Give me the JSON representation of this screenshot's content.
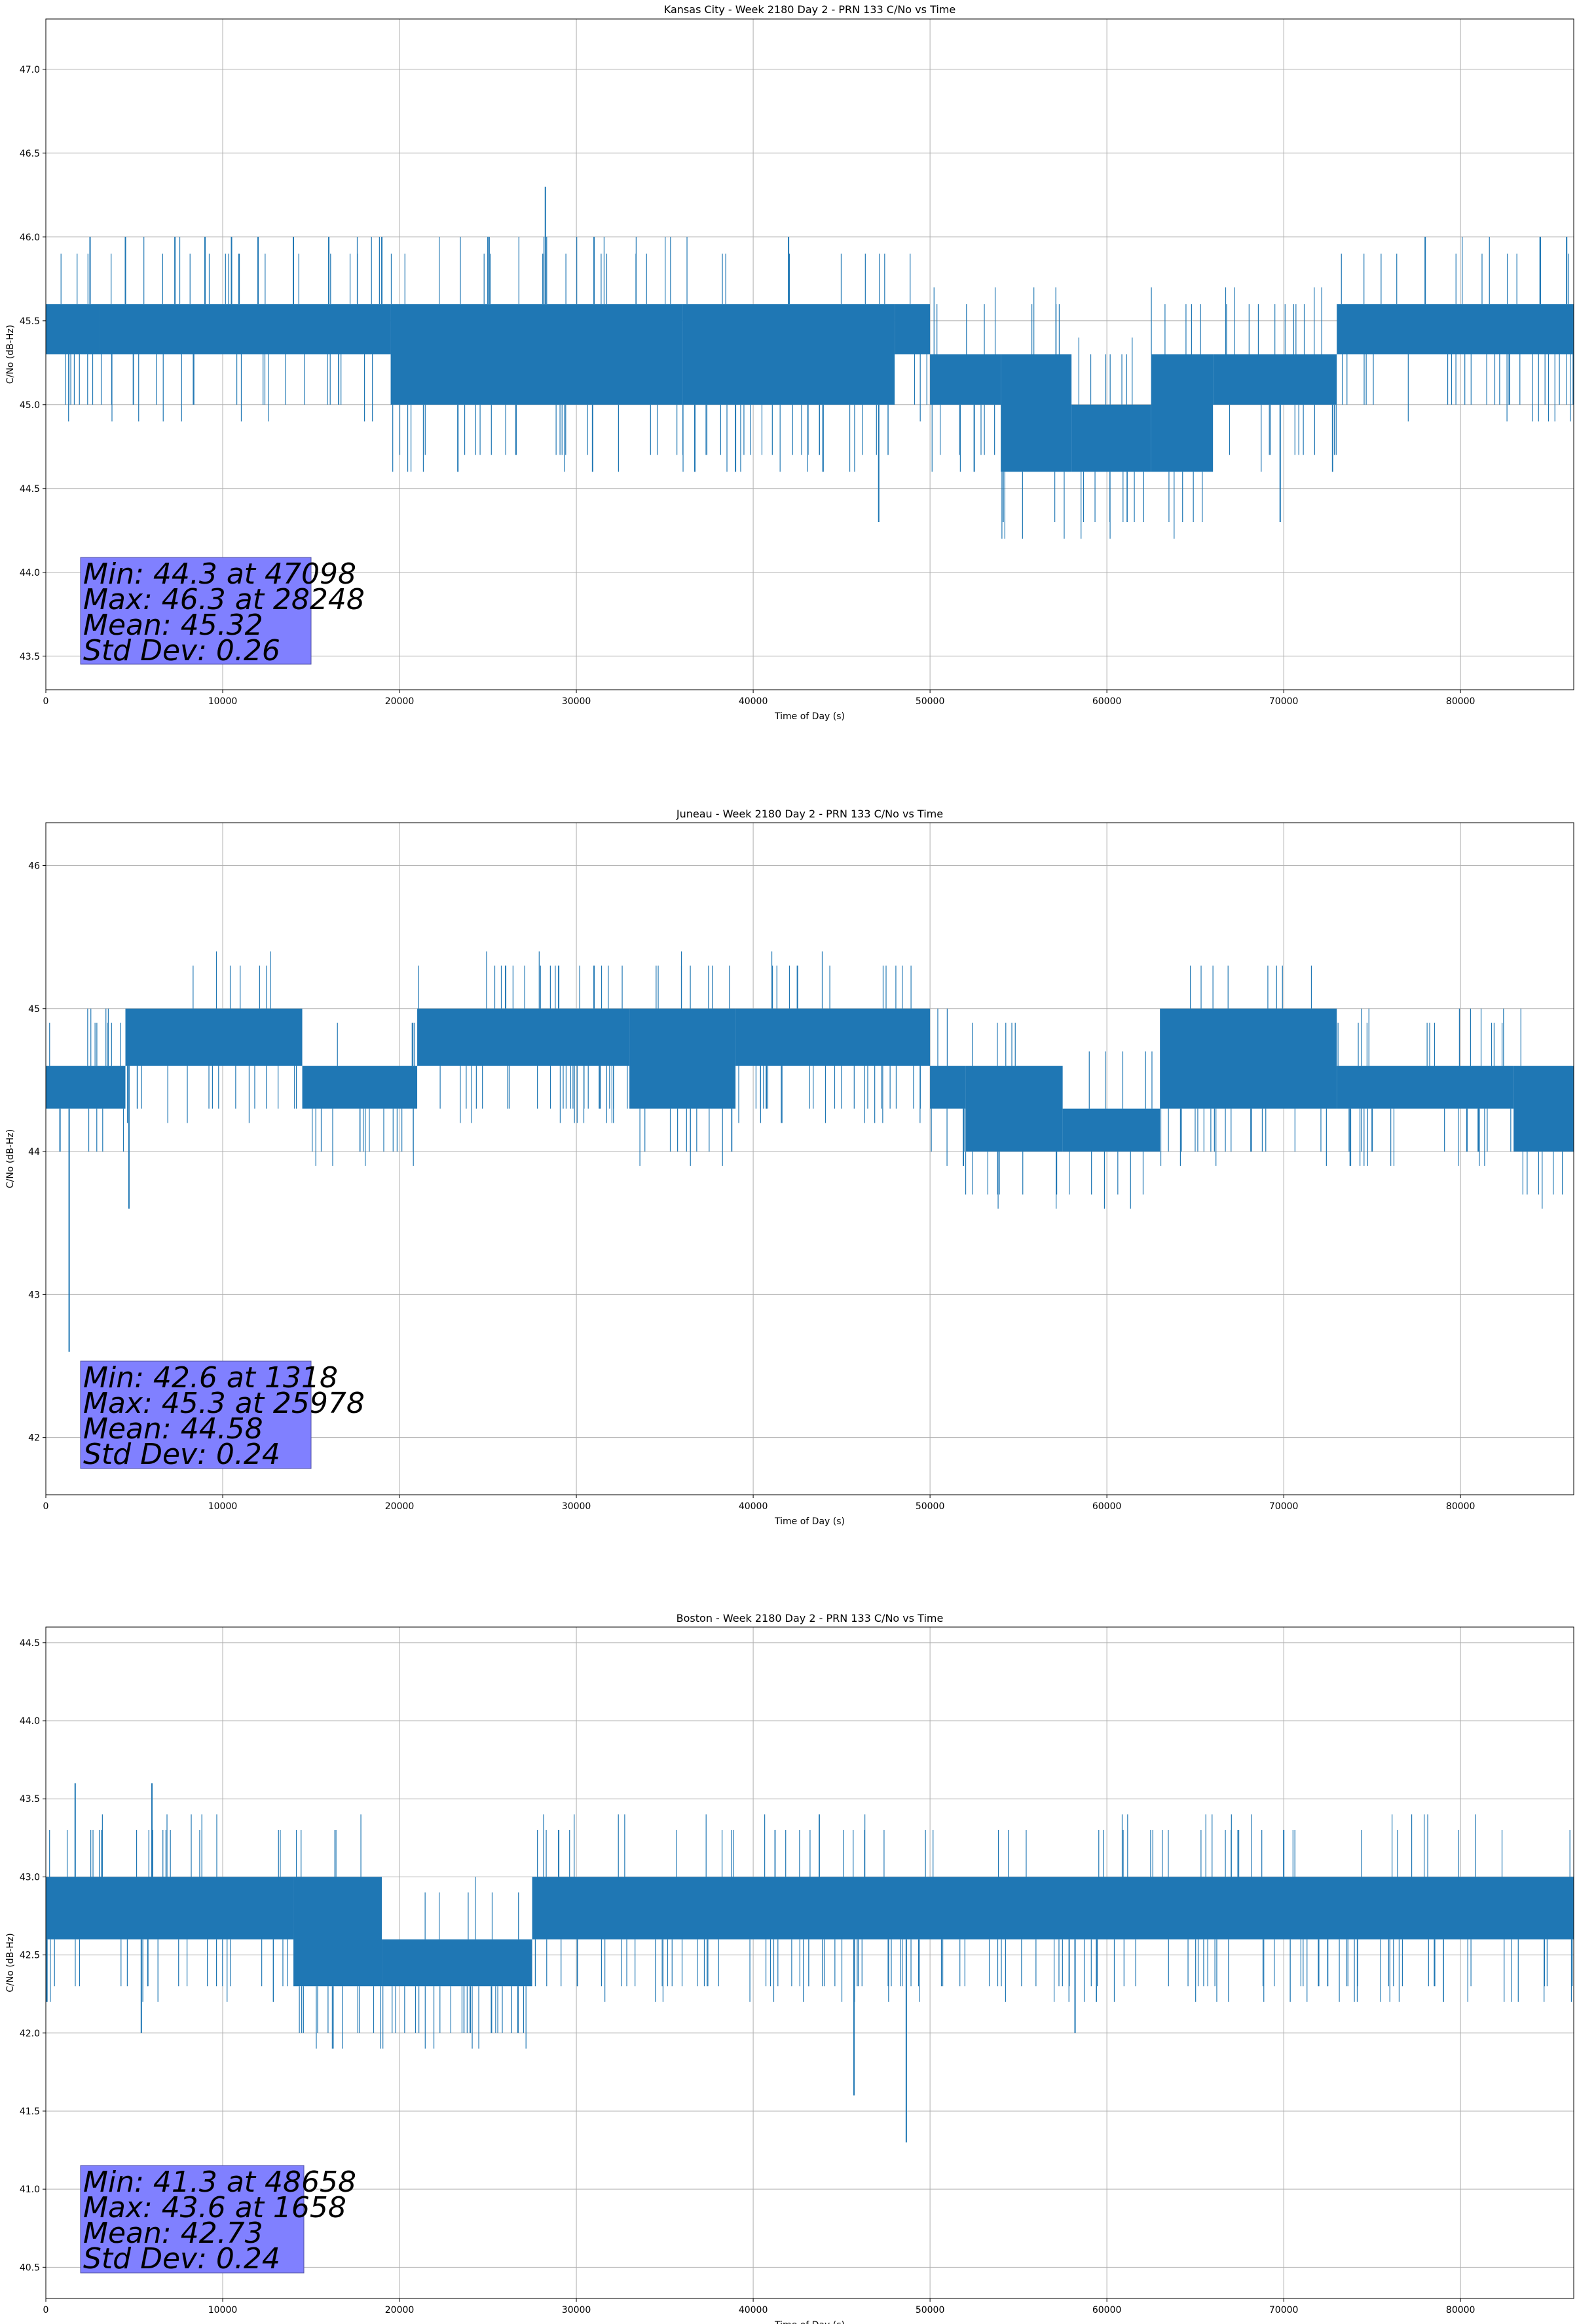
{
  "colors": {
    "series": "#1f77b4",
    "grid": "#b0b0b0",
    "statbox": "#8080ff"
  },
  "chart_data": [
    {
      "type": "line",
      "title": "Kansas City - Week 2180 Day 2 - PRN 133 C/No vs Time",
      "xlabel": "Time of Day (s)",
      "ylabel": "C/No (dB-Hz)",
      "xlim": [
        0,
        86400
      ],
      "ylim": [
        43.3,
        47.3
      ],
      "xticks": [
        0,
        10000,
        20000,
        30000,
        40000,
        50000,
        60000,
        70000,
        80000
      ],
      "yticks": [
        43.5,
        44.0,
        44.5,
        45.0,
        45.5,
        46.0,
        46.5,
        47.0
      ],
      "ytick_labels": [
        "43.5",
        "44.0",
        "44.5",
        "45.0",
        "45.5",
        "46.0",
        "46.5",
        "47.0"
      ],
      "grid": true,
      "band_segments": [
        {
          "x": [
            0,
            3000
          ],
          "lo": 45.3,
          "hi": 45.6
        },
        {
          "x": [
            3000,
            19500
          ],
          "lo": 45.3,
          "hi": 45.6
        },
        {
          "x": [
            19500,
            36000
          ],
          "lo": 45.0,
          "hi": 45.6
        },
        {
          "x": [
            36000,
            48000
          ],
          "lo": 45.0,
          "hi": 45.6
        },
        {
          "x": [
            48000,
            50000
          ],
          "lo": 45.3,
          "hi": 45.6
        },
        {
          "x": [
            50000,
            54000
          ],
          "lo": 45.0,
          "hi": 45.3
        },
        {
          "x": [
            54000,
            58000
          ],
          "lo": 44.6,
          "hi": 45.3
        },
        {
          "x": [
            58000,
            62500
          ],
          "lo": 44.6,
          "hi": 45.0
        },
        {
          "x": [
            62500,
            66000
          ],
          "lo": 44.6,
          "hi": 45.3
        },
        {
          "x": [
            66000,
            73000
          ],
          "lo": 45.0,
          "hi": 45.3
        },
        {
          "x": [
            73000,
            86400
          ],
          "lo": 45.3,
          "hi": 45.6
        }
      ],
      "spikes": [
        {
          "x": 2500,
          "y": 46.0
        },
        {
          "x": 4500,
          "y": 46.0
        },
        {
          "x": 7300,
          "y": 46.0
        },
        {
          "x": 9000,
          "y": 46.0
        },
        {
          "x": 10500,
          "y": 46.0
        },
        {
          "x": 12000,
          "y": 46.0
        },
        {
          "x": 14000,
          "y": 46.0
        },
        {
          "x": 16000,
          "y": 46.0
        },
        {
          "x": 19000,
          "y": 46.0
        },
        {
          "x": 23300,
          "y": 44.6
        },
        {
          "x": 25000,
          "y": 46.0
        },
        {
          "x": 28248,
          "y": 46.3
        },
        {
          "x": 31000,
          "y": 46.0
        },
        {
          "x": 36700,
          "y": 44.6
        },
        {
          "x": 39000,
          "y": 44.6
        },
        {
          "x": 42000,
          "y": 46.0
        },
        {
          "x": 47098,
          "y": 44.3
        },
        {
          "x": 52500,
          "y": 44.6
        },
        {
          "x": 69800,
          "y": 44.3
        },
        {
          "x": 78000,
          "y": 46.0
        },
        {
          "x": 84500,
          "y": 46.0
        },
        {
          "x": 86000,
          "y": 46.0
        }
      ],
      "stats": [
        "Min: 44.3 at 47098",
        "Max: 46.3 at 28248",
        "Mean: 45.32",
        "Std Dev: 0.26"
      ]
    },
    {
      "type": "line",
      "title": "Juneau - Week 2180 Day 2 - PRN 133 C/No vs Time",
      "xlabel": "Time of Day (s)",
      "ylabel": "C/No (dB-Hz)",
      "xlim": [
        0,
        86400
      ],
      "ylim": [
        41.6,
        46.3
      ],
      "xticks": [
        0,
        10000,
        20000,
        30000,
        40000,
        50000,
        60000,
        70000,
        80000
      ],
      "yticks": [
        42,
        43,
        44,
        45,
        46
      ],
      "ytick_labels": [
        "42",
        "43",
        "44",
        "45",
        "46"
      ],
      "grid": true,
      "band_segments": [
        {
          "x": [
            0,
            4500
          ],
          "lo": 44.3,
          "hi": 44.6
        },
        {
          "x": [
            4500,
            14500
          ],
          "lo": 44.6,
          "hi": 45.0
        },
        {
          "x": [
            14500,
            21000
          ],
          "lo": 44.3,
          "hi": 44.6
        },
        {
          "x": [
            21000,
            33000
          ],
          "lo": 44.6,
          "hi": 45.0
        },
        {
          "x": [
            33000,
            39000
          ],
          "lo": 44.3,
          "hi": 45.0
        },
        {
          "x": [
            39000,
            50000
          ],
          "lo": 44.6,
          "hi": 45.0
        },
        {
          "x": [
            50000,
            52000
          ],
          "lo": 44.3,
          "hi": 44.6
        },
        {
          "x": [
            52000,
            57500
          ],
          "lo": 44.0,
          "hi": 44.6
        },
        {
          "x": [
            57500,
            63000
          ],
          "lo": 44.0,
          "hi": 44.3
        },
        {
          "x": [
            63000,
            73000
          ],
          "lo": 44.3,
          "hi": 45.0
        },
        {
          "x": [
            73000,
            83000
          ],
          "lo": 44.3,
          "hi": 44.6
        },
        {
          "x": [
            83000,
            86400
          ],
          "lo": 44.0,
          "hi": 44.6
        }
      ],
      "spikes": [
        {
          "x": 1318,
          "y": 42.6
        },
        {
          "x": 800,
          "y": 44.0
        },
        {
          "x": 4700,
          "y": 43.6
        },
        {
          "x": 26000,
          "y": 45.3
        },
        {
          "x": 29000,
          "y": 45.3
        },
        {
          "x": 31000,
          "y": 45.3
        },
        {
          "x": 42500,
          "y": 45.3
        },
        {
          "x": 75000,
          "y": 44.0
        },
        {
          "x": 81000,
          "y": 44.0
        }
      ],
      "stats": [
        "Min: 42.6 at 1318",
        "Max: 45.3 at 25978",
        "Mean: 44.58",
        "Std Dev: 0.24"
      ]
    },
    {
      "type": "line",
      "title": "Boston - Week 2180 Day 2 - PRN 133 C/No vs Time",
      "xlabel": "Time of Day (s)",
      "ylabel": "C/No (dB-Hz)",
      "xlim": [
        0,
        86400
      ],
      "ylim": [
        40.3,
        44.6
      ],
      "xticks": [
        0,
        10000,
        20000,
        30000,
        40000,
        50000,
        60000,
        70000,
        80000
      ],
      "yticks": [
        40.5,
        41.0,
        41.5,
        42.0,
        42.5,
        43.0,
        43.5,
        44.0,
        44.5
      ],
      "ytick_labels": [
        "40.5",
        "41.0",
        "41.5",
        "42.0",
        "42.5",
        "43.0",
        "43.5",
        "44.0",
        "44.5"
      ],
      "grid": true,
      "band_segments": [
        {
          "x": [
            0,
            14000
          ],
          "lo": 42.6,
          "hi": 43.0
        },
        {
          "x": [
            14000,
            19000
          ],
          "lo": 42.3,
          "hi": 43.0
        },
        {
          "x": [
            19000,
            27500
          ],
          "lo": 42.3,
          "hi": 42.6
        },
        {
          "x": [
            27500,
            86400
          ],
          "lo": 42.6,
          "hi": 43.0
        }
      ],
      "spikes": [
        {
          "x": 1658,
          "y": 43.6
        },
        {
          "x": 6000,
          "y": 43.6
        },
        {
          "x": 5400,
          "y": 42.0
        },
        {
          "x": 24000,
          "y": 42.0
        },
        {
          "x": 25200,
          "y": 42.0
        },
        {
          "x": 26700,
          "y": 42.0
        },
        {
          "x": 45700,
          "y": 41.6
        },
        {
          "x": 48658,
          "y": 41.3
        },
        {
          "x": 58200,
          "y": 42.0
        },
        {
          "x": 29000,
          "y": 43.3
        },
        {
          "x": 70000,
          "y": 43.3
        }
      ],
      "stats": [
        "Min: 41.3 at 48658",
        "Max: 43.6 at 1658",
        "Mean: 42.73",
        "Std Dev: 0.24"
      ]
    }
  ]
}
